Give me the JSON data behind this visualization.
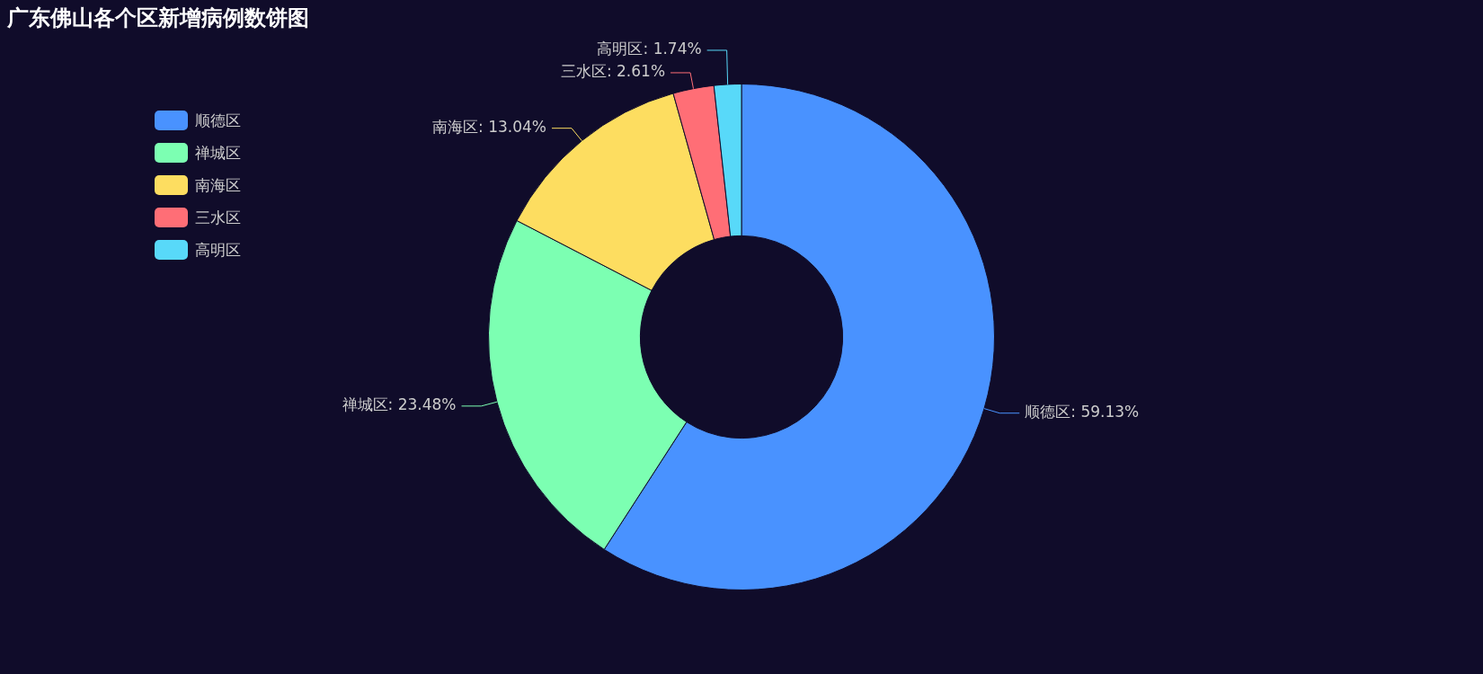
{
  "chart_data": {
    "type": "donut",
    "title": "广东佛山各个区新增病例数饼图",
    "categories": [
      "顺德区",
      "禅城区",
      "南海区",
      "三水区",
      "高明区"
    ],
    "values": [
      59.13,
      23.48,
      13.04,
      2.61,
      1.74
    ],
    "value_labels": [
      "顺德区: 59.13%",
      "禅城区: 23.48%",
      "南海区: 13.04%",
      "三水区: 2.61%",
      "高明区: 1.74%"
    ],
    "colors": [
      "#4992ff",
      "#7cffb2",
      "#fddd60",
      "#ff6e76",
      "#58d9f9"
    ],
    "legend": "top left"
  }
}
